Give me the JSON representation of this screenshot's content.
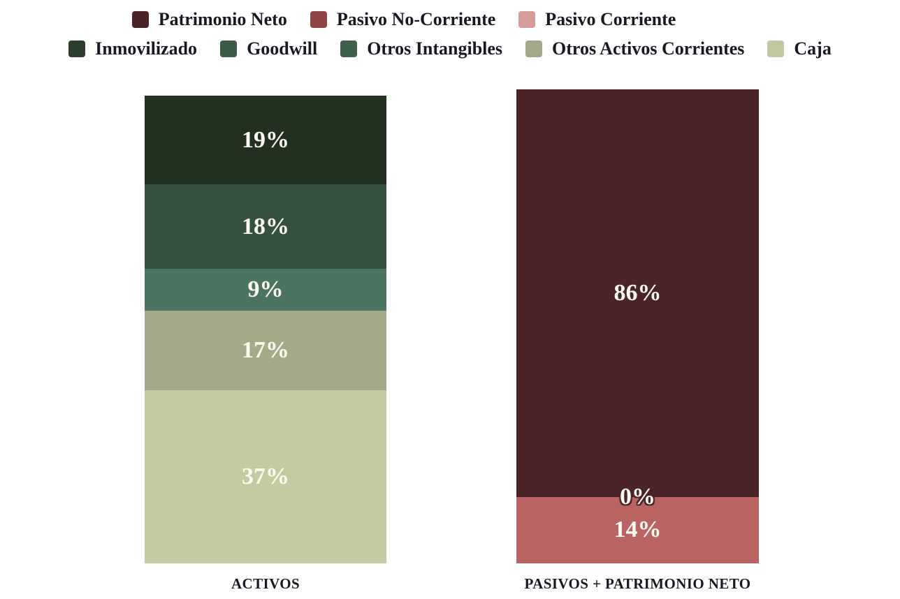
{
  "chart_data": {
    "type": "bar",
    "variant": "100-percent-stacked-column",
    "title": "",
    "xlabel": "",
    "ylabel": "",
    "ylim": [
      0,
      100
    ],
    "grid": false,
    "legend_position": "top",
    "categories": [
      "ACTIVOS",
      "PASIVOS + PATRIMONIO NETO"
    ],
    "series": [
      {
        "name": "Patrimonio Neto",
        "values": [
          null,
          86
        ],
        "color": "#4b2427"
      },
      {
        "name": "Pasivo No-Corriente",
        "values": [
          null,
          0
        ],
        "color": "#8d4244"
      },
      {
        "name": "Pasivo Corriente",
        "values": [
          null,
          14
        ],
        "color": "#b96463"
      },
      {
        "name": "Inmovilizado",
        "values": [
          19,
          null
        ],
        "color": "#22301f"
      },
      {
        "name": "Goodwill",
        "values": [
          18,
          null
        ],
        "color": "#35503d"
      },
      {
        "name": "Otros Intangibles",
        "values": [
          9,
          null
        ],
        "color": "#4c7561"
      },
      {
        "name": "Otros Activos Corrientes",
        "values": [
          17,
          null
        ],
        "color": "#a6a98a"
      },
      {
        "name": "Caja",
        "values": [
          37,
          null
        ],
        "color": "#c6caa3"
      }
    ],
    "legend_rows": [
      [
        {
          "label": "Patrimonio Neto",
          "color": "#4b2427"
        },
        {
          "label": "Pasivo No-Corriente",
          "color": "#8d4244"
        },
        {
          "label": "Pasivo Corriente",
          "color": "#d49b9a"
        }
      ],
      [
        {
          "label": "Inmovilizado",
          "color": "#2c3e2e"
        },
        {
          "label": "Goodwill",
          "color": "#3b5a45"
        },
        {
          "label": "Otros Intangibles",
          "color": "#3f614b"
        },
        {
          "label": "Otros Activos Corrientes",
          "color": "#a3a888"
        },
        {
          "label": "Caja",
          "color": "#c3c7a0"
        }
      ]
    ],
    "bars": [
      {
        "id": "activos",
        "category": "ACTIVOS",
        "segments": [
          {
            "series": "Inmovilizado",
            "value": 19,
            "label": "19%",
            "color": "#22301f"
          },
          {
            "series": "Goodwill",
            "value": 18,
            "label": "18%",
            "color": "#35503d"
          },
          {
            "series": "Otros Intangibles",
            "value": 9,
            "label": "9%",
            "color": "#4c7561"
          },
          {
            "series": "Otros Activos Corrientes",
            "value": 17,
            "label": "17%",
            "color": "#a6a98a"
          },
          {
            "series": "Caja",
            "value": 37,
            "label": "37%",
            "color": "#c6caa3"
          }
        ]
      },
      {
        "id": "pasivos",
        "category": "PASIVOS + PATRIMONIO NETO",
        "segments": [
          {
            "series": "Patrimonio Neto",
            "value": 86,
            "label": "86%",
            "color": "#4b2427"
          },
          {
            "series": "Pasivo No-Corriente",
            "value": 0,
            "label": "0%",
            "color": "#8d4244"
          },
          {
            "series": "Pasivo Corriente",
            "value": 14,
            "label": "14%",
            "color": "#b96463"
          }
        ]
      }
    ],
    "colors": {
      "text": "#191923",
      "data_label": "#fcfbf1",
      "zero_label_outline": "#4b2427",
      "background": "#ffffff"
    }
  }
}
